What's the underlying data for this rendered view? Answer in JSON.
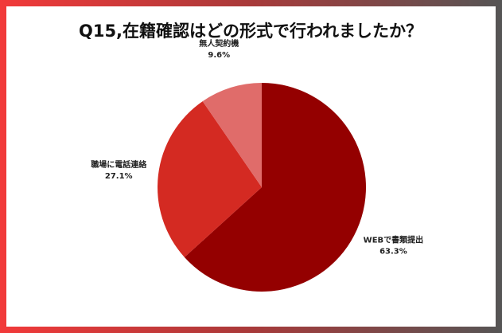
{
  "chart_data": {
    "type": "pie",
    "title": "Q15,在籍確認はどの形式で行われましたか？",
    "categories": [
      "WEBで書類提出",
      "職場に電話連絡",
      "無人契約機"
    ],
    "values": [
      63.3,
      27.1,
      9.6
    ],
    "value_labels": [
      "63.3%",
      "27.1%",
      "9.6%"
    ],
    "colors": [
      "#940000",
      "#d42a22",
      "#e06c6a"
    ]
  }
}
